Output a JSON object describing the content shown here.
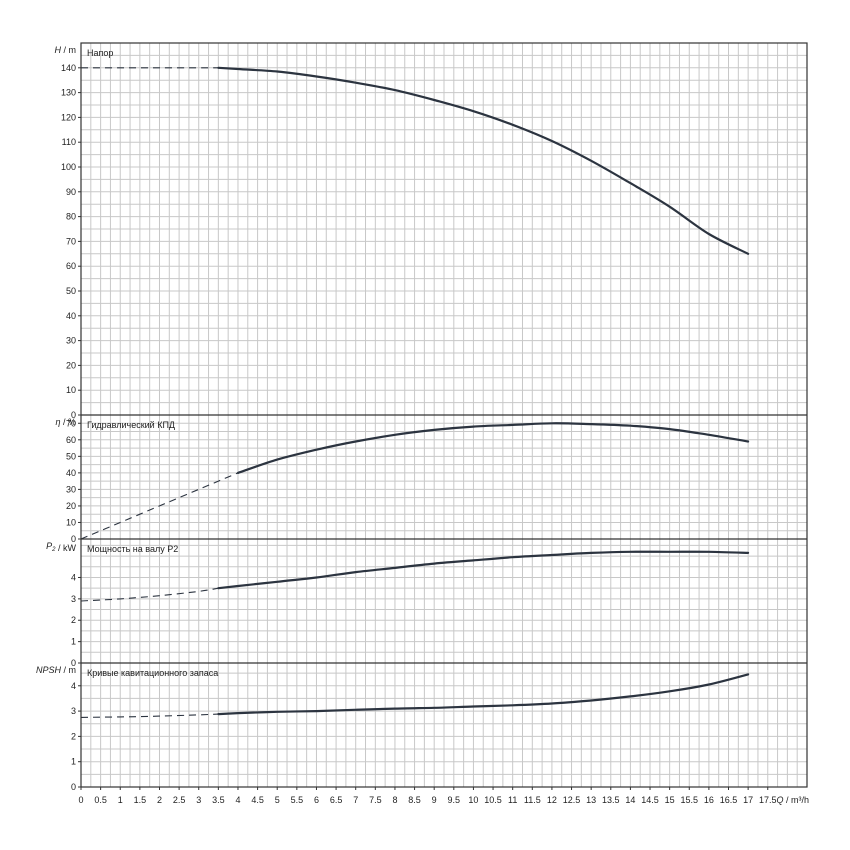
{
  "chart_data": {
    "type": "line",
    "x": {
      "label": "Q / m³/h",
      "label_var": "Q",
      "label_unit": "m³/h",
      "range": [
        0,
        18.5
      ],
      "ticks": [
        "0",
        "0.5",
        "1",
        "1.5",
        "2",
        "2.5",
        "3",
        "3.5",
        "4",
        "4.5",
        "5",
        "5.5",
        "6",
        "6.5",
        "7",
        "7.5",
        "8",
        "8.5",
        "9",
        "9.5",
        "10",
        "10.5",
        "11",
        "11.5",
        "12",
        "12.5",
        "13",
        "13.5",
        "14",
        "14.5",
        "15",
        "15.5",
        "16",
        "16.5",
        "17",
        "17.5"
      ]
    },
    "panels": [
      {
        "id": "head",
        "title": "Напор",
        "y_var": "H",
        "y_unit": "m",
        "ylim": [
          0,
          150
        ],
        "yticks": [
          "0",
          "10",
          "20",
          "30",
          "40",
          "50",
          "60",
          "70",
          "80",
          "90",
          "100",
          "110",
          "120",
          "130",
          "140"
        ],
        "solid_from_x": 3.5,
        "points": [
          [
            0,
            140
          ],
          [
            1,
            140
          ],
          [
            2,
            140
          ],
          [
            3,
            140
          ],
          [
            3.5,
            140
          ],
          [
            4,
            139.5
          ],
          [
            5,
            138.5
          ],
          [
            6,
            136.5
          ],
          [
            7,
            134
          ],
          [
            8,
            131
          ],
          [
            9,
            127
          ],
          [
            10,
            122.5
          ],
          [
            11,
            117
          ],
          [
            12,
            110.5
          ],
          [
            13,
            102.5
          ],
          [
            14,
            93.5
          ],
          [
            15,
            84
          ],
          [
            16,
            73
          ],
          [
            17,
            65
          ]
        ]
      },
      {
        "id": "efficiency",
        "title": "Гидравлический КПД",
        "y_var": "η",
        "y_unit": "%",
        "ylim": [
          0,
          75
        ],
        "yticks": [
          "0",
          "10",
          "20",
          "30",
          "40",
          "50",
          "60",
          "70"
        ],
        "solid_from_x": 4,
        "points": [
          [
            0,
            0
          ],
          [
            1,
            10
          ],
          [
            2,
            20
          ],
          [
            3,
            30
          ],
          [
            4,
            40
          ],
          [
            5,
            48
          ],
          [
            6,
            54
          ],
          [
            7,
            59
          ],
          [
            8,
            63
          ],
          [
            9,
            66
          ],
          [
            10,
            68
          ],
          [
            11,
            69
          ],
          [
            12,
            70
          ],
          [
            13,
            69.5
          ],
          [
            14,
            68.5
          ],
          [
            15,
            66.5
          ],
          [
            16,
            63
          ],
          [
            17,
            59
          ]
        ]
      },
      {
        "id": "power",
        "title": "Мощность на валу P2",
        "y_var": "P",
        "y_sub": "2",
        "y_unit": "kW",
        "ylim": [
          0,
          5.8
        ],
        "yticks": [
          "0",
          "1",
          "2",
          "3",
          "4"
        ],
        "solid_from_x": 3.5,
        "points": [
          [
            0,
            2.9
          ],
          [
            1,
            3
          ],
          [
            2,
            3.15
          ],
          [
            3,
            3.35
          ],
          [
            3.5,
            3.5
          ],
          [
            4,
            3.6
          ],
          [
            5,
            3.8
          ],
          [
            6,
            4
          ],
          [
            7,
            4.25
          ],
          [
            8,
            4.45
          ],
          [
            9,
            4.65
          ],
          [
            10,
            4.8
          ],
          [
            11,
            4.95
          ],
          [
            12,
            5.05
          ],
          [
            13,
            5.15
          ],
          [
            14,
            5.2
          ],
          [
            15,
            5.2
          ],
          [
            16,
            5.2
          ],
          [
            17,
            5.15
          ]
        ]
      },
      {
        "id": "npsh",
        "title": "Кривые кавитационного запаса",
        "y_var": "NPSH",
        "y_unit": "m",
        "ylim": [
          0,
          4.9
        ],
        "yticks": [
          "0",
          "1",
          "2",
          "3",
          "4"
        ],
        "solid_from_x": 3.5,
        "points": [
          [
            0,
            2.75
          ],
          [
            1,
            2.77
          ],
          [
            2,
            2.8
          ],
          [
            3,
            2.85
          ],
          [
            3.5,
            2.88
          ],
          [
            4,
            2.92
          ],
          [
            5,
            2.97
          ],
          [
            6,
            3
          ],
          [
            7,
            3.05
          ],
          [
            8,
            3.1
          ],
          [
            9,
            3.13
          ],
          [
            10,
            3.18
          ],
          [
            11,
            3.23
          ],
          [
            12,
            3.3
          ],
          [
            13,
            3.42
          ],
          [
            14,
            3.58
          ],
          [
            15,
            3.78
          ],
          [
            16,
            4.05
          ],
          [
            17,
            4.45
          ]
        ]
      }
    ],
    "grid": true
  }
}
